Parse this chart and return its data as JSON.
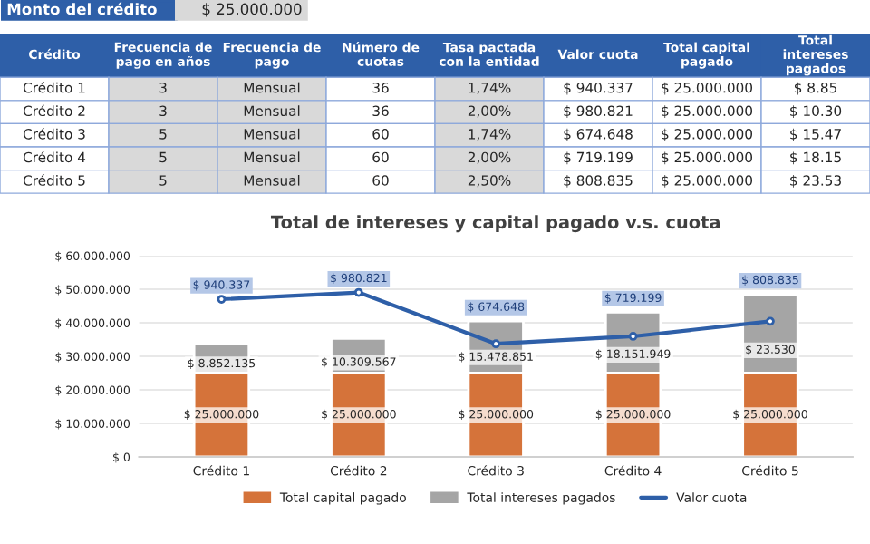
{
  "chart_data": [
    {
      "type": "other",
      "annotations": [
        "Monto del crédito",
        "$ 25.000.000",
        "Crédito",
        "Frecuencia de\npago en años",
        "Frecuencia de\npago",
        "Número de\ncuotas",
        "Tasa pactada\ncon la entidad",
        "Valor cuota",
        "Total capital\npagado",
        "Total\nintereses\npagados",
        "Crédito 1",
        "3",
        "Mensual",
        "36",
        "1,74%",
        "$ 940.337",
        "$ 25.000.000",
        "$ 8.85",
        "Crédito 2",
        "3",
        "Mensual",
        "36",
        "2,00%",
        "$ 980.821",
        "$ 25.000.000",
        "$ 10.30",
        "Crédito 3",
        "5",
        "Mensual",
        "60",
        "1,74%",
        "$ 674.648",
        "$ 25.000.000",
        "$ 15.47",
        "Crédito 4",
        "5",
        "Mensual",
        "60",
        "2,00%",
        "$ 719.199",
        "$ 25.000.000",
        "$ 18.15",
        "Crédito 5",
        "5",
        "Mensual",
        "60",
        "2,50%",
        "$ 808.835",
        "$ 25.000.000",
        "$ 23.53"
      ]
    },
    {
      "type": "bar",
      "stacked": true,
      "title": "Total de intereses y capital pagado v.s. cuota",
      "categories": [
        "Crédito 1",
        "Crédito 2",
        "Crédito 3",
        "Crédito 4",
        "Crédito 5"
      ],
      "series": [
        {
          "name": "Total capital pagado",
          "color": "#d5733a",
          "values": [
            25000000,
            25000000,
            25000000,
            25000000,
            25000000
          ],
          "value_labels": [
            "$ 25.000.000",
            "$ 25.000.000",
            "$ 25.000.000",
            "$ 25.000.000",
            "$ 25.000.000"
          ]
        },
        {
          "name": "Total intereses pagados",
          "color": "#a5a5a5",
          "values": [
            8852135,
            10309567,
            15478851,
            18151949,
            23500000
          ],
          "value_labels": [
            "$ 8.852.135",
            "$ 10.309.567",
            "$ 15.478.851",
            "$ 18.151.949",
            null
          ]
        },
        {
          "name": "Valor cuota",
          "type": "line",
          "axis": "y2",
          "marker": "circle",
          "color": "#2e5fa8",
          "values": [
            940337,
            980821,
            674648,
            719199,
            808835
          ],
          "value_labels": [
            "$ 940.337",
            "$ 980.821",
            "$ 674.648",
            "$ 719.199",
            "$ 808.835"
          ]
        }
      ],
      "ylim": [
        0,
        60000000
      ],
      "yticks": [
        {
          "value": 0,
          "label": "$ 0"
        },
        {
          "value": 10000000,
          "label": "$ 10.000.000"
        },
        {
          "value": 20000000,
          "label": "$ 20.000.000"
        },
        {
          "value": 30000000,
          "label": "$ 30.000.000"
        },
        {
          "value": 40000000,
          "label": "$ 40.000.000"
        },
        {
          "value": 50000000,
          "label": "$ 50.000.000"
        },
        {
          "value": 60000000,
          "label": "$ 60.000.000"
        }
      ],
      "y2lim": [
        0,
        1200000
      ],
      "annotations": [
        "$ 23.530"
      ],
      "grid": "y",
      "legend": "bottom"
    }
  ]
}
